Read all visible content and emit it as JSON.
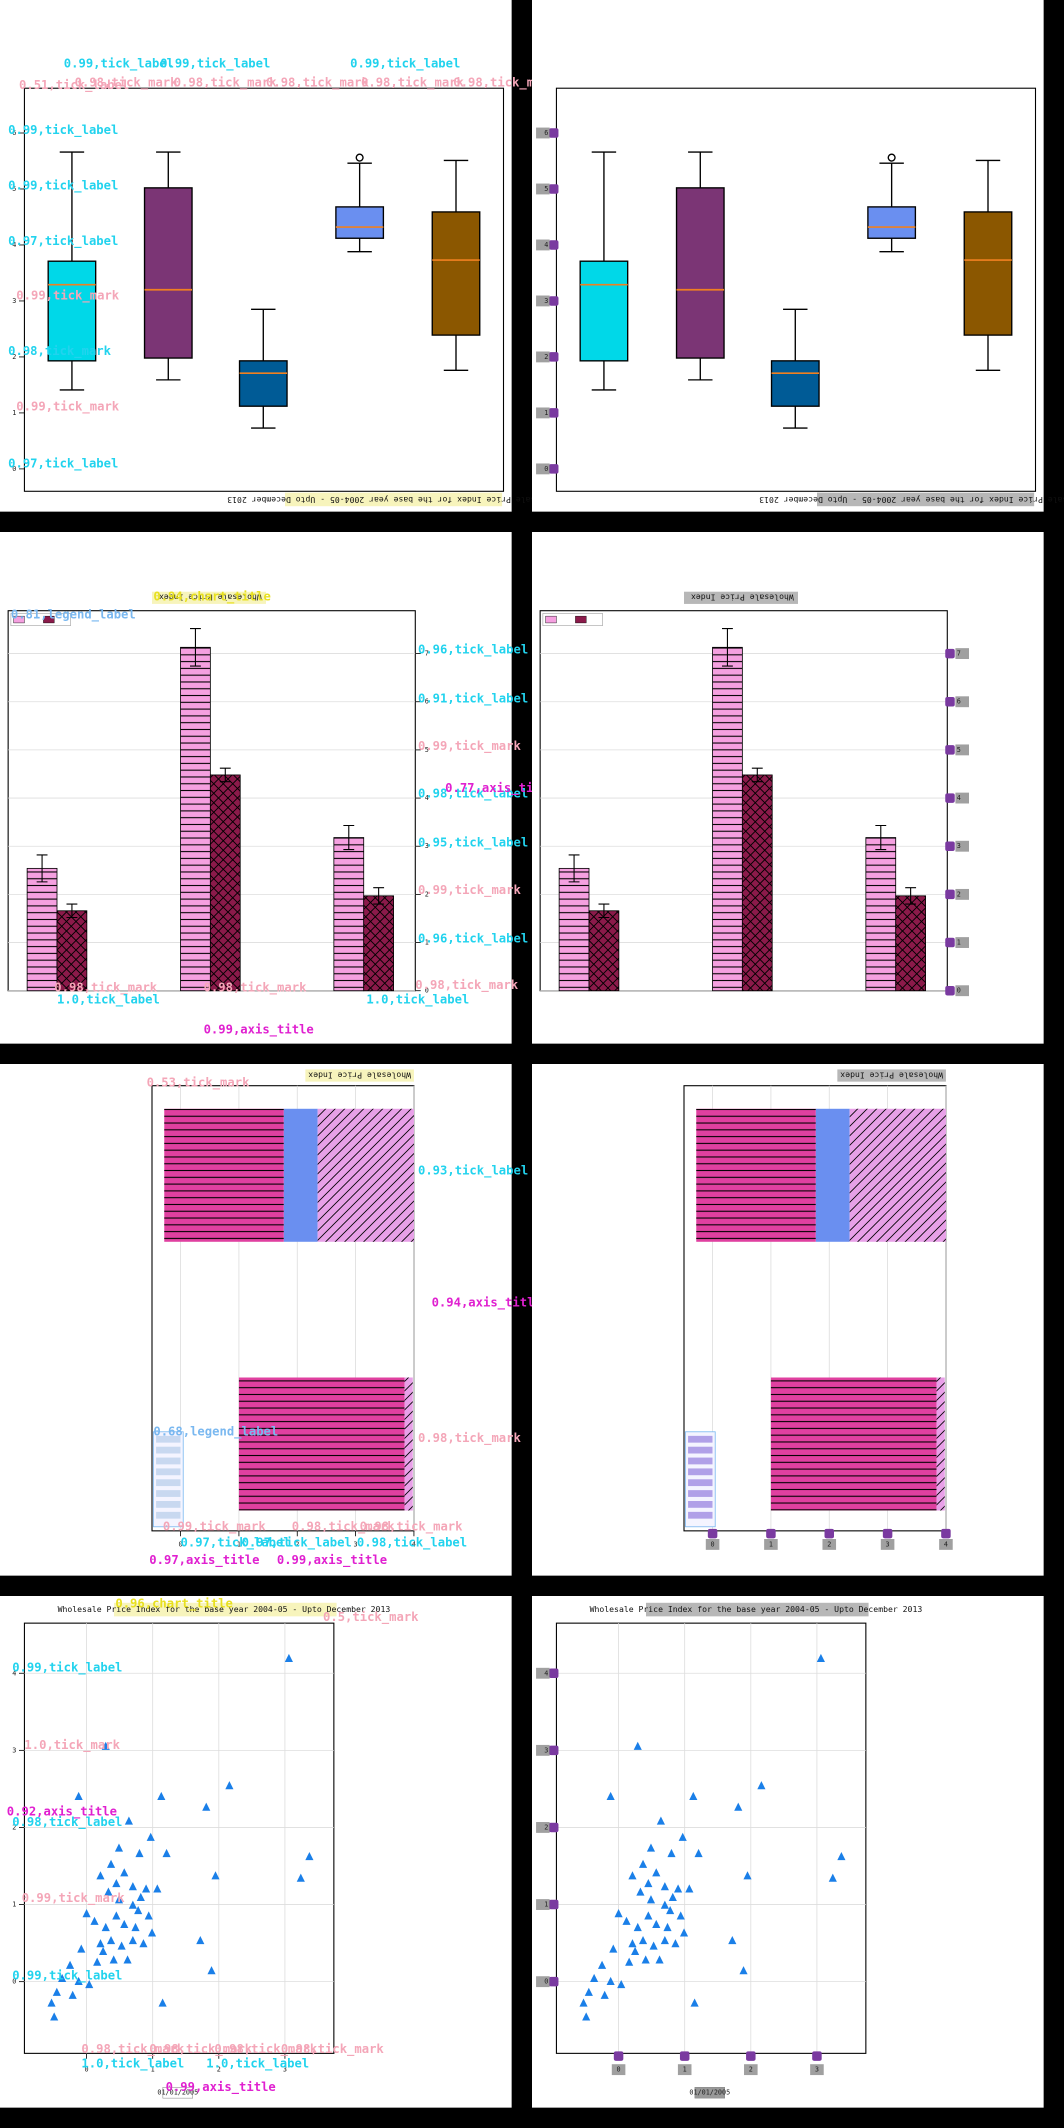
{
  "rows": [
    {
      "chart": {
        "type": "box",
        "title": "Wholesale Price Index for the base year 2004-05 - Upto December 2013",
        "ylim": [
          -0.4,
          6.8
        ],
        "yticks": [
          0,
          1,
          2,
          3,
          4,
          5,
          6
        ],
        "median_color": "#f08020",
        "boxes": [
          {
            "color": "#00d8e8",
            "whislo": 1.41,
            "q1": 1.93,
            "med": 3.29,
            "q3": 3.71,
            "whishi": 5.66,
            "fliers": []
          },
          {
            "color": "#7b3575",
            "whislo": 1.59,
            "q1": 1.98,
            "med": 3.2,
            "q3": 5.02,
            "whishi": 5.66,
            "fliers": []
          },
          {
            "color": "#005b96",
            "whislo": 0.73,
            "q1": 1.12,
            "med": 1.71,
            "q3": 1.93,
            "whishi": 2.85,
            "fliers": []
          },
          {
            "color": "#6a8ff0",
            "whislo": 3.88,
            "q1": 4.12,
            "med": 4.32,
            "q3": 4.68,
            "whishi": 5.46,
            "fliers": [
              5.56
            ]
          },
          {
            "color": "#8b5700",
            "whislo": 1.76,
            "q1": 2.39,
            "med": 3.73,
            "q3": 4.59,
            "whishi": 5.51,
            "fliers": []
          }
        ]
      },
      "annotations": [
        {
          "text": "0.99,tick_label",
          "color": "#22d3ee"
        },
        {
          "text": "0.99,tick_label",
          "color": "#22d3ee"
        },
        {
          "text": "0.99,tick_label",
          "color": "#22d3ee"
        },
        {
          "text": "0.51,tick_label",
          "color": "#f4a6b8"
        },
        {
          "text": "0.98,tick_mark",
          "color": "#f4a6b8"
        },
        {
          "text": "0.98,tick_mark",
          "color": "#f4a6b8"
        },
        {
          "text": "0.98,tick_mark",
          "color": "#f4a6b8"
        },
        {
          "text": "0.98,tick_mark",
          "color": "#f4a6b8"
        },
        {
          "text": "0.98,tick_mark",
          "color": "#f4a6b8"
        },
        {
          "text": "0.99,tick_label",
          "color": "#22d3ee"
        },
        {
          "text": "0.99,tick_label",
          "color": "#22d3ee"
        },
        {
          "text": "0.97,tick_label",
          "color": "#22d3ee"
        },
        {
          "text": "0.99,tick_mark",
          "color": "#f4a6b8"
        },
        {
          "text": "0.98,tick_mark",
          "color": "#22d3ee"
        },
        {
          "text": "0.99,tick_mark",
          "color": "#f4a6b8"
        },
        {
          "text": "0.97,tick_label",
          "color": "#22d3ee"
        }
      ]
    },
    {
      "chart": {
        "type": "bar",
        "title": "Wholesale Price Index",
        "ylim": [
          0,
          7.89
        ],
        "yticks": [
          0,
          1,
          2,
          3,
          4,
          5,
          6,
          7
        ],
        "grid": true,
        "series": [
          {
            "color": "#f5a0e0",
            "hatch": "horizontal",
            "values": [
              2.54,
              7.13,
              3.18
            ],
            "errors": [
              0.28,
              0.39,
              0.25
            ]
          },
          {
            "color": "#8b1a4a",
            "hatch": "cross",
            "values": [
              1.66,
              4.48,
              1.97
            ],
            "errors": [
              0.14,
              0.14,
              0.17
            ]
          }
        ]
      },
      "annotations": [
        {
          "text": "0.94,chart_title",
          "color": "#e8e020"
        },
        {
          "text": "0.81,legend_label",
          "color": "#7ab8f0"
        },
        {
          "text": "0.96,tick_label",
          "color": "#22d3ee"
        },
        {
          "text": "0.91,tick_label",
          "color": "#22d3ee"
        },
        {
          "text": "0.99,tick_mark",
          "color": "#f4a6b8"
        },
        {
          "text": "0.98,tick_label",
          "color": "#22d3ee"
        },
        {
          "text": "0.77,axis_title",
          "color": "#e020d0"
        },
        {
          "text": "0.95,tick_label",
          "color": "#22d3ee"
        },
        {
          "text": "0.99,tick_mark",
          "color": "#f4a6b8"
        },
        {
          "text": "0.96,tick_label",
          "color": "#22d3ee"
        },
        {
          "text": "0.98,tick_mark",
          "color": "#f4a6b8"
        },
        {
          "text": "0.98,tick_mark",
          "color": "#f4a6b8"
        },
        {
          "text": "0.98,tick_mark",
          "color": "#f4a6b8"
        },
        {
          "text": "1.0,tick_label",
          "color": "#22d3ee"
        },
        {
          "text": "1.0,tick_label",
          "color": "#22d3ee"
        },
        {
          "text": "0.99,axis_title",
          "color": "#e020d0"
        }
      ]
    },
    {
      "chart": {
        "type": "hbar",
        "title": "Wholesale Price Index",
        "xlim": [
          -0.49,
          4
        ],
        "xticks": [
          0,
          1,
          2,
          3,
          4
        ],
        "grid": true,
        "starts": [
          -0.28,
          1.0
        ],
        "series": [
          {
            "color": "#e040a0",
            "hatch": "horizontal",
            "values": [
              2.05,
              2.84
            ]
          },
          {
            "color": "#6a8ff0",
            "hatch": "none",
            "values": [
              0.58,
              null
            ]
          },
          {
            "color": "#e8a0e8",
            "hatch": "diagonal",
            "values": [
              1.65,
              0.14
            ]
          }
        ]
      },
      "annotations": [
        {
          "text": "0.53,tick_mark",
          "color": "#f4a6b8"
        },
        {
          "text": "0.93,tick_label",
          "color": "#22d3ee"
        },
        {
          "text": "0.94,axis_title",
          "color": "#e020d0"
        },
        {
          "text": "0.98,tick_mark",
          "color": "#f4a6b8"
        },
        {
          "text": "0.68,legend_label",
          "color": "#7ab8f0"
        },
        {
          "text": "0.99,tick_mark",
          "color": "#f4a6b8"
        },
        {
          "text": "0.98,tick_mark",
          "color": "#f4a6b8"
        },
        {
          "text": "0.98,tick_mark",
          "color": "#f4a6b8"
        },
        {
          "text": "0.97,tick_label",
          "color": "#22d3ee"
        },
        {
          "text": "0.97,tick_label",
          "color": "#22d3ee"
        },
        {
          "text": "0.98,tick_label",
          "color": "#22d3ee"
        },
        {
          "text": "0.97,axis_title",
          "color": "#e020d0"
        },
        {
          "text": "0.99,axis_title",
          "color": "#e020d0"
        }
      ]
    },
    {
      "chart": {
        "type": "scatter",
        "title": "Wholesale Price Index for the base year 2004-05 - Upto December 2013",
        "xlabel": "01/01/2005",
        "color": "#1a7fe8",
        "grid": true,
        "xlim": [
          -0.94,
          3.74
        ],
        "xticks": [
          0,
          1,
          2,
          3
        ],
        "ylim": [
          -0.93,
          4.65
        ],
        "yticks": [
          0,
          1,
          2,
          3,
          4
        ],
        "x": [
          3.06,
          0.29,
          -0.12,
          2.16,
          1.81,
          1.13,
          3.37,
          3.24,
          1.95,
          0.64,
          0.97,
          1.21,
          0.49,
          0.8,
          0.21,
          0.37,
          0.57,
          0.7,
          0.9,
          1.07,
          0.33,
          0.49,
          0.7,
          0.82,
          0.94,
          0.45,
          0.57,
          0.74,
          0.29,
          0.12,
          0.0,
          0.21,
          0.37,
          0.53,
          0.7,
          0.86,
          0.16,
          0.41,
          -0.08,
          -0.25,
          -0.37,
          -0.12,
          0.04,
          -0.45,
          -0.53,
          -0.21,
          1.72,
          1.89,
          1.15,
          -0.49,
          0.25,
          0.62,
          0.99,
          0.78,
          0.45
        ],
        "y": [
          4.19,
          3.05,
          2.4,
          2.54,
          2.26,
          2.4,
          1.62,
          1.34,
          1.37,
          2.08,
          1.87,
          1.66,
          1.73,
          1.66,
          1.37,
          1.52,
          1.41,
          1.23,
          1.2,
          1.2,
          1.16,
          1.06,
          0.99,
          1.09,
          0.85,
          0.85,
          0.74,
          0.7,
          0.7,
          0.78,
          0.88,
          0.49,
          0.53,
          0.46,
          0.53,
          0.49,
          0.25,
          0.28,
          0.42,
          0.21,
          0.04,
          0.0,
          -0.04,
          -0.14,
          -0.28,
          -0.18,
          0.53,
          0.14,
          -0.28,
          -0.46,
          0.39,
          0.28,
          0.63,
          0.92,
          1.27
        ]
      },
      "annotations": [
        {
          "text": "0.96,chart_title",
          "color": "#e8e020"
        },
        {
          "text": "0.5,tick_mark",
          "color": "#f4a6b8"
        },
        {
          "text": "0.99,tick_label",
          "color": "#22d3ee"
        },
        {
          "text": "1.0,tick_mark",
          "color": "#f4a6b8"
        },
        {
          "text": "0.92,axis_title",
          "color": "#e020d0"
        },
        {
          "text": "0.98,tick_label",
          "color": "#22d3ee"
        },
        {
          "text": "0.99,tick_mark",
          "color": "#f4a6b8"
        },
        {
          "text": "0.99,tick_label",
          "color": "#22d3ee"
        },
        {
          "text": "0.98,tick_mark",
          "color": "#f4a6b8"
        },
        {
          "text": "0.98,tick_mark",
          "color": "#f4a6b8"
        },
        {
          "text": "0.98,tick_mark",
          "color": "#f4a6b8"
        },
        {
          "text": "0.98,tick_mark",
          "color": "#f4a6b8"
        },
        {
          "text": "1.0,tick_label",
          "color": "#22d3ee"
        },
        {
          "text": "1.0,tick_label",
          "color": "#22d3ee"
        },
        {
          "text": "0.99,axis_title",
          "color": "#e020d0"
        }
      ]
    }
  ]
}
